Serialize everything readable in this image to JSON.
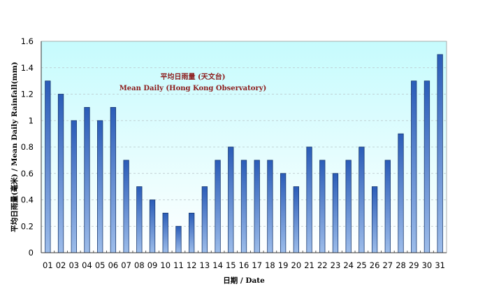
{
  "chart_data": {
    "type": "bar",
    "title": "",
    "annotation_line1": "平均日雨量 (天文台)",
    "annotation_line2": "Mean Daily (Hong Kong Observatory)",
    "xlabel": "日期 / Date",
    "ylabel": "平均日雨量(毫米) / Mean Daily Rainfall(mm)",
    "ylim": [
      0,
      1.6
    ],
    "yticks": [
      0,
      0.2,
      0.4,
      0.6,
      0.8,
      1,
      1.2,
      1.4,
      1.6
    ],
    "ytick_labels": [
      "0",
      "0.2",
      "0.4",
      "0.6",
      "0.8",
      "1",
      "1.2",
      "1.4",
      "1.6"
    ],
    "grid": true,
    "legend": null,
    "categories": [
      "01",
      "02",
      "03",
      "04",
      "05",
      "06",
      "07",
      "08",
      "09",
      "10",
      "11",
      "12",
      "13",
      "14",
      "15",
      "16",
      "17",
      "18",
      "19",
      "20",
      "21",
      "22",
      "23",
      "24",
      "25",
      "26",
      "27",
      "28",
      "29",
      "30",
      "31"
    ],
    "series": [
      {
        "name": "Mean Daily (Hong Kong Observatory)",
        "values": [
          1.3,
          1.2,
          1.0,
          1.1,
          1.0,
          1.1,
          0.7,
          0.5,
          0.4,
          0.3,
          0.2,
          0.3,
          0.5,
          0.7,
          0.8,
          0.7,
          0.7,
          0.7,
          0.6,
          0.5,
          0.8,
          0.7,
          0.6,
          0.7,
          0.8,
          0.5,
          0.7,
          0.9,
          1.3,
          1.3,
          1.5
        ]
      }
    ]
  },
  "colors": {
    "plot_bg_top": "#c6fbfd",
    "plot_bg_bottom": "#ffffff",
    "bar_dark": "#1f4fa8",
    "bar_light": "#8fb2e6",
    "bar_edge": "#1a3a70",
    "annotation": "#8b1a1a",
    "grid": "#b8c4c8"
  }
}
